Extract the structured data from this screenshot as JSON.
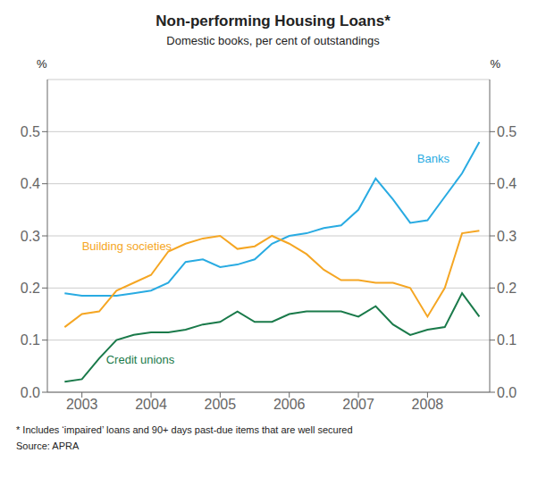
{
  "chart_data": {
    "type": "line",
    "title": "Non-performing Housing Loans*",
    "subtitle": "Domestic books, per cent of outstandings",
    "y_label": "%",
    "y2_label": "%",
    "footnote": "*  Includes ‘impaired’ loans and 90+ days past-due items that are well secured",
    "source": "Source: APRA",
    "xlim": [
      2002.5,
      2008.9
    ],
    "xticks": [
      2003,
      2004,
      2005,
      2006,
      2007,
      2008
    ],
    "ylim": [
      0.0,
      0.6
    ],
    "yticks": [
      {
        "value": 0.0,
        "label": "0.0"
      },
      0.1,
      0.2,
      0.3,
      0.4,
      0.5
    ],
    "y2lim": [
      0.0,
      0.6
    ],
    "y2ticks": [
      {
        "value": 0.0,
        "label": "0.0"
      },
      0.1,
      0.2,
      0.3,
      0.4,
      0.5
    ],
    "grid": true,
    "x": [
      2002.75,
      2003.0,
      2003.25,
      2003.5,
      2003.75,
      2004.0,
      2004.25,
      2004.5,
      2004.75,
      2005.0,
      2005.25,
      2005.5,
      2005.75,
      2006.0,
      2006.25,
      2006.5,
      2006.75,
      2007.0,
      2007.25,
      2007.5,
      2007.75,
      2008.0,
      2008.25,
      2008.5,
      2008.75
    ],
    "series": [
      {
        "name": "Banks",
        "color": "#29ABE2",
        "values": [
          0.19,
          0.185,
          0.185,
          0.185,
          0.19,
          0.195,
          0.21,
          0.25,
          0.255,
          0.24,
          0.245,
          0.255,
          0.285,
          0.3,
          0.305,
          0.315,
          0.32,
          0.35,
          0.41,
          0.37,
          0.325,
          0.33,
          0.375,
          0.42,
          0.48
        ]
      },
      {
        "name": "Building societies",
        "color": "#F5A623",
        "values": [
          0.125,
          0.15,
          0.155,
          0.195,
          0.21,
          0.225,
          0.27,
          0.285,
          0.295,
          0.3,
          0.275,
          0.28,
          0.3,
          0.285,
          0.265,
          0.235,
          0.215,
          0.215,
          0.21,
          0.21,
          0.2,
          0.145,
          0.2,
          0.305,
          0.31
        ]
      },
      {
        "name": "Credit unions",
        "color": "#1A7A4A",
        "values": [
          0.02,
          0.025,
          0.065,
          0.1,
          0.11,
          0.115,
          0.115,
          0.12,
          0.13,
          0.135,
          0.155,
          0.135,
          0.135,
          0.15,
          0.155,
          0.155,
          0.155,
          0.145,
          0.165,
          0.13,
          0.11,
          0.12,
          0.125,
          0.19,
          0.145
        ]
      }
    ],
    "annotations": [
      {
        "text": "Banks",
        "x": 2007.85,
        "y": 0.435,
        "color": "#29ABE2"
      },
      {
        "text": "Building societies",
        "x": 2003.0,
        "y": 0.268,
        "color": "#F5A623"
      },
      {
        "text": "Credit unions",
        "x": 2003.35,
        "y": 0.078,
        "color": "#1A7A4A"
      }
    ]
  }
}
